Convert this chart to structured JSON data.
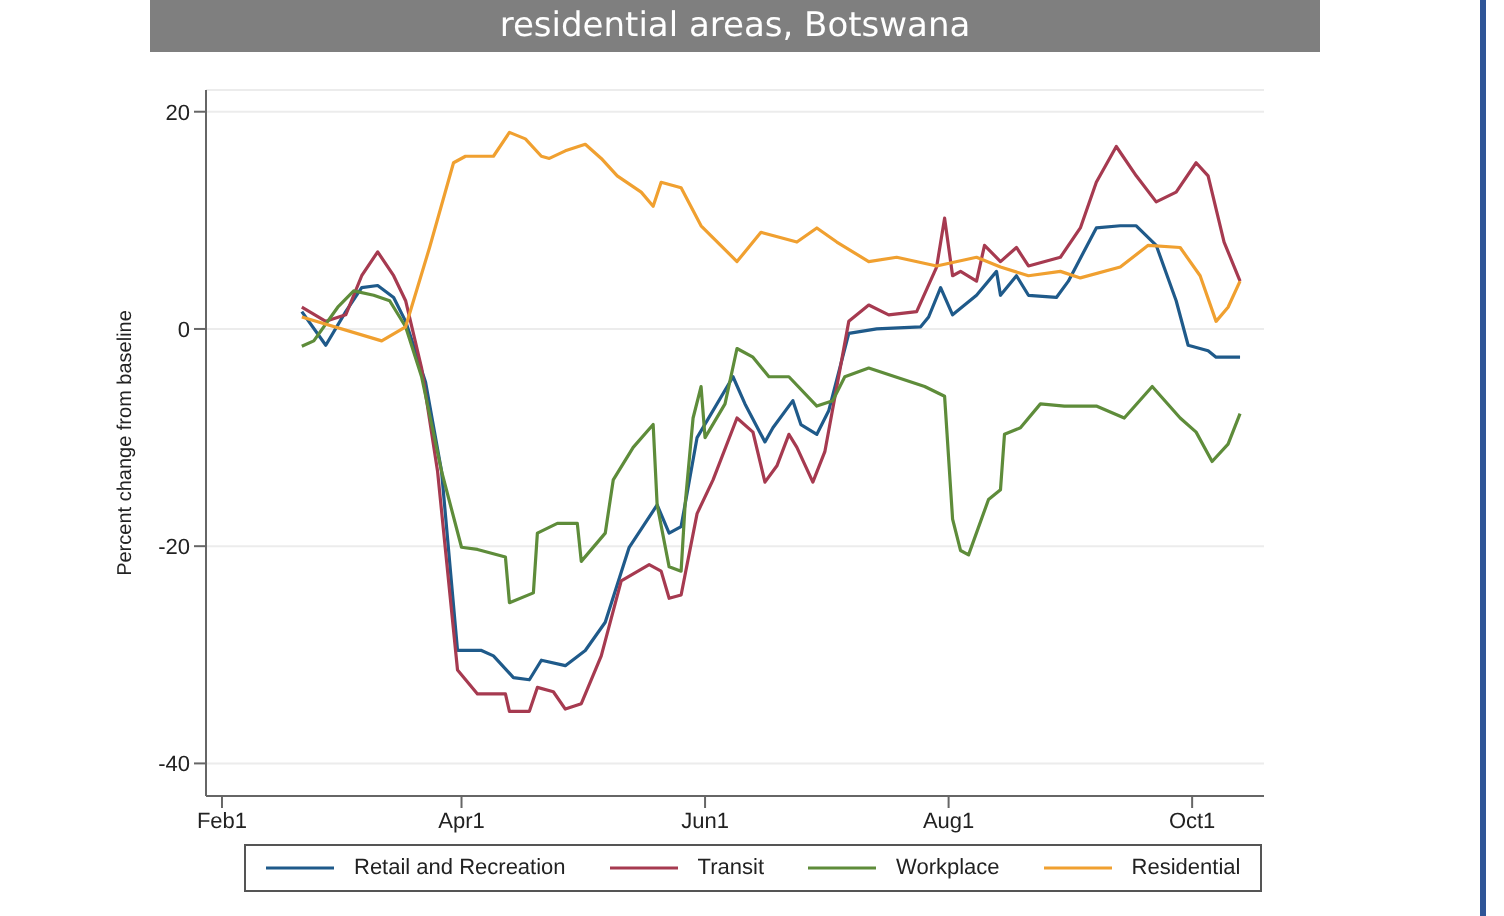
{
  "chart_data": {
    "type": "line",
    "title": "residential areas, Botswana",
    "ylabel": "Percent change from baseline",
    "xlim": [
      "--01-28",
      "--10-19"
    ],
    "xticks": [
      {
        "value": "--02-01",
        "label": "Feb1"
      },
      {
        "value": "--04-01",
        "label": "Apr1"
      },
      {
        "value": "--06-01",
        "label": "Jun1"
      },
      {
        "value": "--08-01",
        "label": "Aug1"
      },
      {
        "value": "--10-01",
        "label": "Oct1"
      }
    ],
    "ylim": [
      -43,
      22
    ],
    "yticks": [
      -40,
      -20,
      0,
      20
    ],
    "grid": "y",
    "legend": "bottom",
    "line_style": "solid",
    "marker": "none",
    "series": [
      {
        "name": "Retail and Recreation",
        "color": "#1f5a8a",
        "x": [
          "--02-21",
          "--02-27",
          "--03-03",
          "--03-07",
          "--03-11",
          "--03-15",
          "--03-18",
          "--03-23",
          "--03-27",
          "--03-31",
          "--04-06",
          "--04-09",
          "--04-14",
          "--04-18",
          "--04-21",
          "--04-27",
          "--05-02",
          "--05-07",
          "--05-13",
          "--05-20",
          "--05-23",
          "--05-26",
          "--05-30",
          "--06-08",
          "--06-11",
          "--06-16",
          "--06-18",
          "--06-23",
          "--06-25",
          "--06-29",
          "--07-02",
          "--07-07",
          "--07-14",
          "--07-25",
          "--07-27",
          "--07-30",
          "--08-02",
          "--08-08",
          "--08-13",
          "--08-14",
          "--08-18",
          "--08-21",
          "--08-28",
          "--08-31",
          "--09-07",
          "--09-13",
          "--09-17",
          "--09-22",
          "--09-27",
          "--09-30",
          "--10-05",
          "--10-07",
          "--10-13"
        ],
        "values": [
          1.6,
          -1.5,
          1.6,
          3.8,
          4.0,
          2.9,
          0.7,
          -4.9,
          -13.1,
          -29.6,
          -29.6,
          -30.1,
          -32.1,
          -32.3,
          -30.5,
          -31.0,
          -29.6,
          -27.0,
          -20.1,
          -16.2,
          -18.8,
          -18.2,
          -10.0,
          -4.4,
          -6.9,
          -10.4,
          -9.1,
          -6.6,
          -8.8,
          -9.7,
          -7.5,
          -0.4,
          0,
          0.2,
          1.1,
          3.8,
          1.3,
          3.1,
          5.3,
          3.1,
          4.9,
          3.1,
          2.9,
          4.4,
          9.3,
          9.5,
          9.5,
          7.7,
          2.6,
          -1.5,
          -2.0,
          -2.6,
          -2.6
        ]
      },
      {
        "name": "Transit",
        "color": "#a63a50",
        "x": [
          "--02-21",
          "--02-27",
          "--03-03",
          "--03-07",
          "--03-11",
          "--03-15",
          "--03-18",
          "--03-22",
          "--03-26",
          "--03-31",
          "--04-05",
          "--04-12",
          "--04-13",
          "--04-18",
          "--04-20",
          "--04-24",
          "--04-27",
          "--05-01",
          "--05-06",
          "--05-11",
          "--05-18",
          "--05-21",
          "--05-23",
          "--05-26",
          "--05-30",
          "--06-03",
          "--06-09",
          "--06-13",
          "--06-16",
          "--06-19",
          "--06-22",
          "--06-24",
          "--06-28",
          "--07-01",
          "--07-07",
          "--07-12",
          "--07-17",
          "--07-24",
          "--07-29",
          "--07-31",
          "--08-02",
          "--08-04",
          "--08-08",
          "--08-10",
          "--08-14",
          "--08-18",
          "--08-21",
          "--08-29",
          "--09-03",
          "--09-07",
          "--09-12",
          "--09-17",
          "--09-22",
          "--09-27",
          "--10-02",
          "--10-05",
          "--10-09",
          "--10-13"
        ],
        "values": [
          2.0,
          0.7,
          1.3,
          4.9,
          7.1,
          4.9,
          2.6,
          -3.6,
          -13.1,
          -31.4,
          -33.6,
          -33.6,
          -35.2,
          -35.2,
          -33.0,
          -33.4,
          -35.0,
          -34.5,
          -30.1,
          -23.2,
          -21.7,
          -22.3,
          -24.8,
          -24.5,
          -17.0,
          -13.9,
          -8.2,
          -9.5,
          -14.1,
          -12.6,
          -9.7,
          -10.9,
          -14.1,
          -11.3,
          0.7,
          2.2,
          1.3,
          1.6,
          5.7,
          10.2,
          4.9,
          5.3,
          4.4,
          7.7,
          6.2,
          7.5,
          5.8,
          6.6,
          9.3,
          13.5,
          16.8,
          14.1,
          11.7,
          12.6,
          15.3,
          14.1,
          8.0,
          4.4
        ]
      },
      {
        "name": "Workplace",
        "color": "#5e8c3a",
        "x": [
          "--02-21",
          "--02-24",
          "--03-01",
          "--03-05",
          "--03-10",
          "--03-14",
          "--03-18",
          "--03-22",
          "--03-27",
          "--04-01",
          "--04-05",
          "--04-12",
          "--04-13",
          "--04-19",
          "--04-20",
          "--04-25",
          "--04-30",
          "--05-01",
          "--05-07",
          "--05-09",
          "--05-14",
          "--05-19",
          "--05-20",
          "--05-23",
          "--05-26",
          "--05-27",
          "--05-29",
          "--05-31",
          "--06-01",
          "--06-06",
          "--06-09",
          "--06-13",
          "--06-17",
          "--06-22",
          "--06-29",
          "--07-03",
          "--07-06",
          "--07-12",
          "--07-26",
          "--07-31",
          "--08-02",
          "--08-04",
          "--08-06",
          "--08-11",
          "--08-14",
          "--08-15",
          "--08-19",
          "--08-24",
          "--08-30",
          "--09-07",
          "--09-14",
          "--09-21",
          "--09-28",
          "--10-02",
          "--10-06",
          "--10-10",
          "--10-13"
        ],
        "values": [
          -1.6,
          -1.1,
          2.0,
          3.5,
          3.1,
          2.6,
          0.2,
          -4.4,
          -13.1,
          -20.1,
          -20.3,
          -21.0,
          -25.2,
          -24.3,
          -18.8,
          -17.9,
          -17.9,
          -21.4,
          -18.8,
          -13.9,
          -10.9,
          -8.8,
          -16.2,
          -21.9,
          -22.3,
          -16.2,
          -8.2,
          -5.3,
          -10.0,
          -6.9,
          -1.8,
          -2.6,
          -4.4,
          -4.4,
          -7.1,
          -6.6,
          -4.4,
          -3.6,
          -5.3,
          -6.2,
          -17.5,
          -20.4,
          -20.8,
          -15.7,
          -14.8,
          -9.7,
          -9.1,
          -6.9,
          -7.1,
          -7.1,
          -8.2,
          -5.3,
          -8.2,
          -9.5,
          -12.2,
          -10.6,
          -7.8
        ]
      },
      {
        "name": "Residential",
        "color": "#f0a030",
        "x": [
          "--02-21",
          "--03-12",
          "--03-18",
          "--03-24",
          "--03-30",
          "--04-02",
          "--04-09",
          "--04-13",
          "--04-17",
          "--04-21",
          "--04-23",
          "--04-27",
          "--05-02",
          "--05-06",
          "--05-10",
          "--05-16",
          "--05-19",
          "--05-21",
          "--05-26",
          "--05-31",
          "--06-09",
          "--06-15",
          "--06-24",
          "--06-29",
          "--07-04",
          "--07-12",
          "--07-19",
          "--07-29",
          "--08-08",
          "--08-14",
          "--08-21",
          "--08-29",
          "--09-03",
          "--09-13",
          "--09-20",
          "--09-28",
          "--10-03",
          "--10-07",
          "--10-10",
          "--10-13"
        ],
        "values": [
          1.1,
          -1.1,
          0.2,
          7.5,
          15.3,
          15.9,
          15.9,
          18.1,
          17.5,
          15.9,
          15.7,
          16.4,
          17.0,
          15.7,
          14.1,
          12.6,
          11.3,
          13.5,
          13.0,
          9.5,
          6.2,
          8.9,
          8.0,
          9.3,
          8.0,
          6.2,
          6.6,
          5.8,
          6.6,
          5.7,
          4.9,
          5.3,
          4.7,
          5.7,
          7.7,
          7.5,
          4.9,
          0.7,
          2.0,
          4.4
        ]
      }
    ]
  }
}
